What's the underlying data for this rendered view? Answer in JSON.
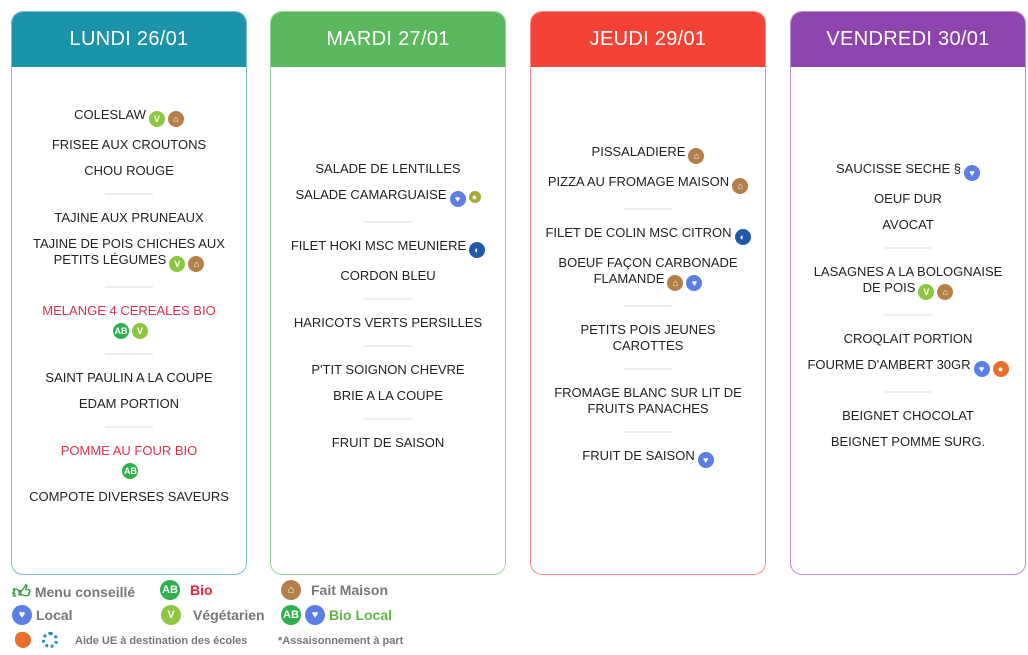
{
  "colors": {
    "lundi": "#1b93a8",
    "mardi": "#5cb85c",
    "jeudi": "#f44336",
    "vendredi": "#8e44ad",
    "bio_text": "#e02a3a",
    "highlight": "#e0314b"
  },
  "icons": {
    "vegetarien": {
      "color": "#8dc63f",
      "glyph": "V"
    },
    "fait-maison": {
      "color": "#b57f4a",
      "glyph": "⌂"
    },
    "local": {
      "color": "#5b7fe4",
      "glyph": "♥"
    },
    "bio": {
      "color": "#2eb04a",
      "glyph": "AB"
    },
    "msc": {
      "color": "#1f5aa8",
      "glyph": "◐"
    },
    "label": {
      "color": "#a9a83a",
      "glyph": "●"
    },
    "aop": {
      "color": "#e8702a",
      "glyph": "●"
    }
  },
  "days": [
    {
      "key": "lundi",
      "title": "LUNDI 26/01",
      "groups": [
        [
          {
            "name": "COLESLAW",
            "icons": [
              "vegetarien",
              "fait-maison"
            ]
          },
          {
            "name": "FRISEE AUX CROUTONS",
            "icons": []
          },
          {
            "name": "CHOU ROUGE",
            "icons": []
          }
        ],
        [
          {
            "name": "TAJINE AUX PRUNEAUX",
            "icons": []
          },
          {
            "name": "TAJINE DE POIS CHICHES AUX PETITS LÉGUMES",
            "icons": [
              "vegetarien",
              "fait-maison"
            ]
          }
        ],
        [
          {
            "name": "MELANGE 4 CEREALES BIO",
            "icons": [
              "bio",
              "vegetarien"
            ],
            "highlight": true,
            "break": true
          }
        ],
        [
          {
            "name": "SAINT PAULIN A LA COUPE",
            "icons": []
          },
          {
            "name": "EDAM PORTION",
            "icons": []
          }
        ],
        [
          {
            "name": "POMME AU FOUR BIO",
            "icons": [
              "bio"
            ],
            "highlight": true,
            "break": true
          },
          {
            "name": "COMPOTE DIVERSES SAVEURS",
            "icons": []
          }
        ]
      ]
    },
    {
      "key": "mardi",
      "title": "MARDI 27/01",
      "groups": [
        [
          {
            "name": "SALADE DE LENTILLES",
            "icons": []
          },
          {
            "name": "SALADE CAMARGUAISE",
            "icons": [
              "local",
              "label"
            ]
          }
        ],
        [
          {
            "name": "FILET HOKI MSC MEUNIERE",
            "icons": [
              "msc"
            ]
          },
          {
            "name": "CORDON BLEU",
            "icons": []
          }
        ],
        [
          {
            "name": "HARICOTS VERTS PERSILLES",
            "icons": []
          }
        ],
        [
          {
            "name": "P'TIT SOIGNON CHEVRE",
            "icons": []
          },
          {
            "name": "BRIE A LA COUPE",
            "icons": []
          }
        ],
        [
          {
            "name": "FRUIT DE SAISON",
            "icons": []
          }
        ]
      ]
    },
    {
      "key": "jeudi",
      "title": "JEUDI 29/01",
      "groups": [
        [
          {
            "name": "PISSALADIERE",
            "icons": [
              "fait-maison"
            ]
          },
          {
            "name": "PIZZA AU FROMAGE MAISON",
            "icons": [
              "fait-maison"
            ]
          }
        ],
        [
          {
            "name": "FILET DE COLIN MSC CITRON",
            "icons": [
              "msc"
            ]
          },
          {
            "name": "BOEUF FAÇON CARBONADE FLAMANDE",
            "icons": [
              "fait-maison",
              "local"
            ]
          }
        ],
        [
          {
            "name": "PETITS POIS JEUNES CAROTTES",
            "icons": []
          }
        ],
        [
          {
            "name": "FROMAGE BLANC SUR LIT DE FRUITS PANACHES",
            "icons": []
          }
        ],
        [
          {
            "name": "FRUIT DE SAISON",
            "icons": [
              "local"
            ]
          }
        ]
      ]
    },
    {
      "key": "vendredi",
      "title": "VENDREDI 30/01",
      "groups": [
        [
          {
            "name": "SAUCISSE SECHE §",
            "icons": [
              "local"
            ]
          },
          {
            "name": "OEUF DUR",
            "icons": []
          },
          {
            "name": "AVOCAT",
            "icons": []
          }
        ],
        [
          {
            "name": "LASAGNES A LA BOLOGNAISE DE POIS",
            "icons": [
              "vegetarien",
              "fait-maison"
            ]
          }
        ],
        [
          {
            "name": "CROQLAIT PORTION",
            "icons": []
          },
          {
            "name": "FOURME D'AMBERT 30GR",
            "icons": [
              "local",
              "aop"
            ]
          }
        ],
        [
          {
            "name": "BEIGNET CHOCOLAT",
            "icons": []
          },
          {
            "name": "BEIGNET POMME SURG.",
            "icons": []
          }
        ]
      ]
    }
  ],
  "legend": {
    "menu_conseille": "Menu conseillé",
    "bio": "Bio",
    "fait_maison": "Fait Maison",
    "local": "Local",
    "vegetarien": "Végétarien",
    "bio_local": "Bio Local",
    "aide_ue": "Aide UE à destination des écoles",
    "assaisonnement": "*Assaisonnement à part"
  }
}
